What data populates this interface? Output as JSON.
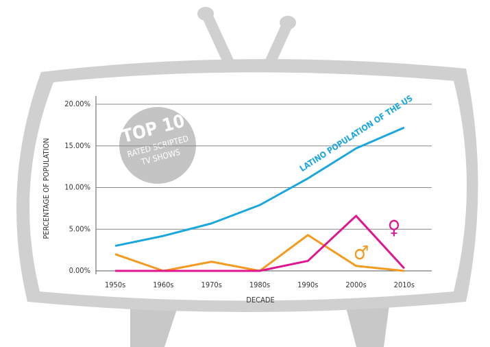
{
  "chart_data": {
    "type": "line",
    "x_label": "DECADE",
    "y_label": "PERCENTAGE OF POPULATION",
    "annotations": [
      "TOP 10",
      "RATED SCRIPTED",
      "TV SHOWS"
    ],
    "categories": [
      "1950s",
      "1960s",
      "1970s",
      "1980s",
      "1990s",
      "2000s",
      "2010s"
    ],
    "series": [
      {
        "name": "LATINO POPULATION OF THE US",
        "color": "#1aa7e0",
        "values": [
          3.0,
          4.2,
          5.7,
          7.9,
          11.1,
          14.7,
          17.2
        ]
      },
      {
        "name": "♂",
        "color": "#f39a1f",
        "values": [
          2.0,
          0,
          1.1,
          0,
          4.3,
          0.6,
          0
        ]
      },
      {
        "name": "♀",
        "color": "#e0168f",
        "values": [
          0,
          0,
          0,
          0,
          1.2,
          6.6,
          0.3
        ]
      }
    ],
    "ylim": [
      0,
      20
    ],
    "yticks": [
      {
        "value": 0,
        "label": "0.00%"
      },
      {
        "value": 5,
        "label": "5.00%"
      },
      {
        "value": 10,
        "label": "10.00%"
      },
      {
        "value": 15,
        "label": "15.00%"
      },
      {
        "value": 20,
        "label": "20.00%"
      }
    ],
    "grid": true
  }
}
